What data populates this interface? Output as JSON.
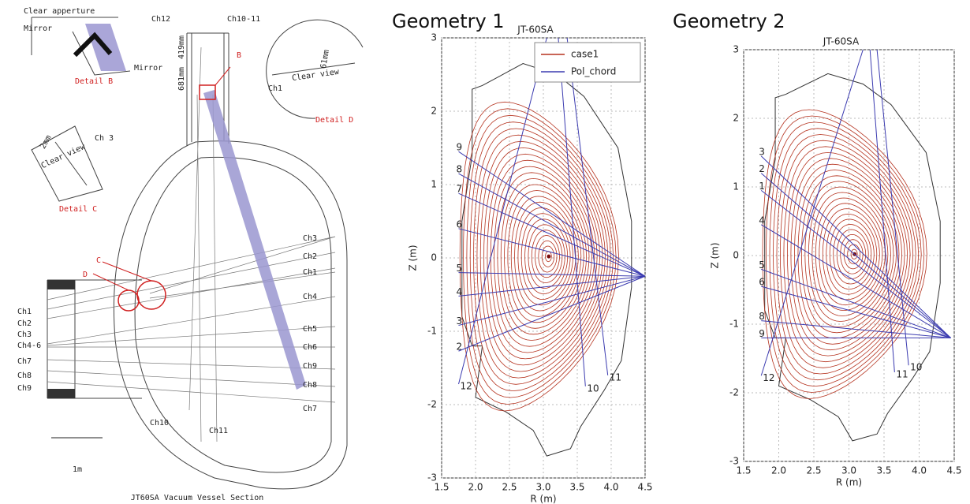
{
  "diagram": {
    "caption": "JT60SA Vacuum Vessel Section",
    "scale": "1m",
    "labels": [
      "Clear apperture",
      "Mirror",
      "Detail B",
      "Mirror",
      "Ch12",
      "Ch10-11",
      "419mm",
      "681mm",
      "B",
      "61mm",
      "Ch1",
      "Clear view",
      "Detail D",
      "2mm",
      "Ch 3",
      "Clear view",
      "Detail C",
      "C",
      "D",
      "Ch10",
      "Ch11"
    ],
    "right_channels": [
      "Ch3",
      "Ch2",
      "Ch1",
      "Ch4",
      "Ch5",
      "Ch6",
      "Ch9",
      "Ch8",
      "Ch7"
    ],
    "left_channels": [
      "Ch1",
      "Ch2",
      "Ch3",
      "Ch4-6",
      "Ch7",
      "Ch8",
      "Ch9"
    ]
  },
  "chart_data": [
    {
      "type": "contour",
      "title": "Geometry 1",
      "subtitle": "JT-60SA",
      "xlabel": "R (m)",
      "ylabel": "Z (m)",
      "xlim": [
        1.5,
        4.5
      ],
      "ylim": [
        -3,
        3
      ],
      "xticks": [
        1.5,
        {
          "value": 2,
          "label": "2.0"
        },
        2.5,
        {
          "value": 3,
          "label": "3.0"
        },
        3.5,
        {
          "value": 4,
          "label": "4.0"
        },
        4.5
      ],
      "yticks": [
        -3,
        -2,
        -1,
        0,
        1,
        2,
        3
      ],
      "grid": true,
      "legend": "upper right",
      "series": [
        {
          "name": "case1",
          "color": "#b5321e"
        },
        {
          "name": "Pol_chord",
          "color": "#3b3bb0"
        }
      ],
      "chord_labels": [
        "9",
        "8",
        "7",
        "6",
        "5",
        "4",
        "3",
        "2",
        "12",
        "11",
        "10"
      ]
    },
    {
      "type": "contour",
      "title": "Geometry 2",
      "subtitle": "JT-60SA",
      "xlabel": "R (m)",
      "ylabel": "Z (m)",
      "xlim": [
        1.5,
        4.5
      ],
      "ylim": [
        -3,
        3
      ],
      "xticks": [
        1.5,
        {
          "value": 2,
          "label": "2.0"
        },
        2.5,
        {
          "value": 3,
          "label": "3.0"
        },
        3.5,
        {
          "value": 4,
          "label": "4.0"
        },
        4.5
      ],
      "yticks": [
        -3,
        -2,
        -1,
        0,
        1,
        2,
        3
      ],
      "grid": true,
      "color": "#b5321e",
      "chord_color": "#3b3bb0",
      "chord_labels": [
        "3",
        "2",
        "1",
        "4",
        "5",
        "6",
        "8",
        "9",
        "12",
        "11",
        "10"
      ]
    }
  ]
}
